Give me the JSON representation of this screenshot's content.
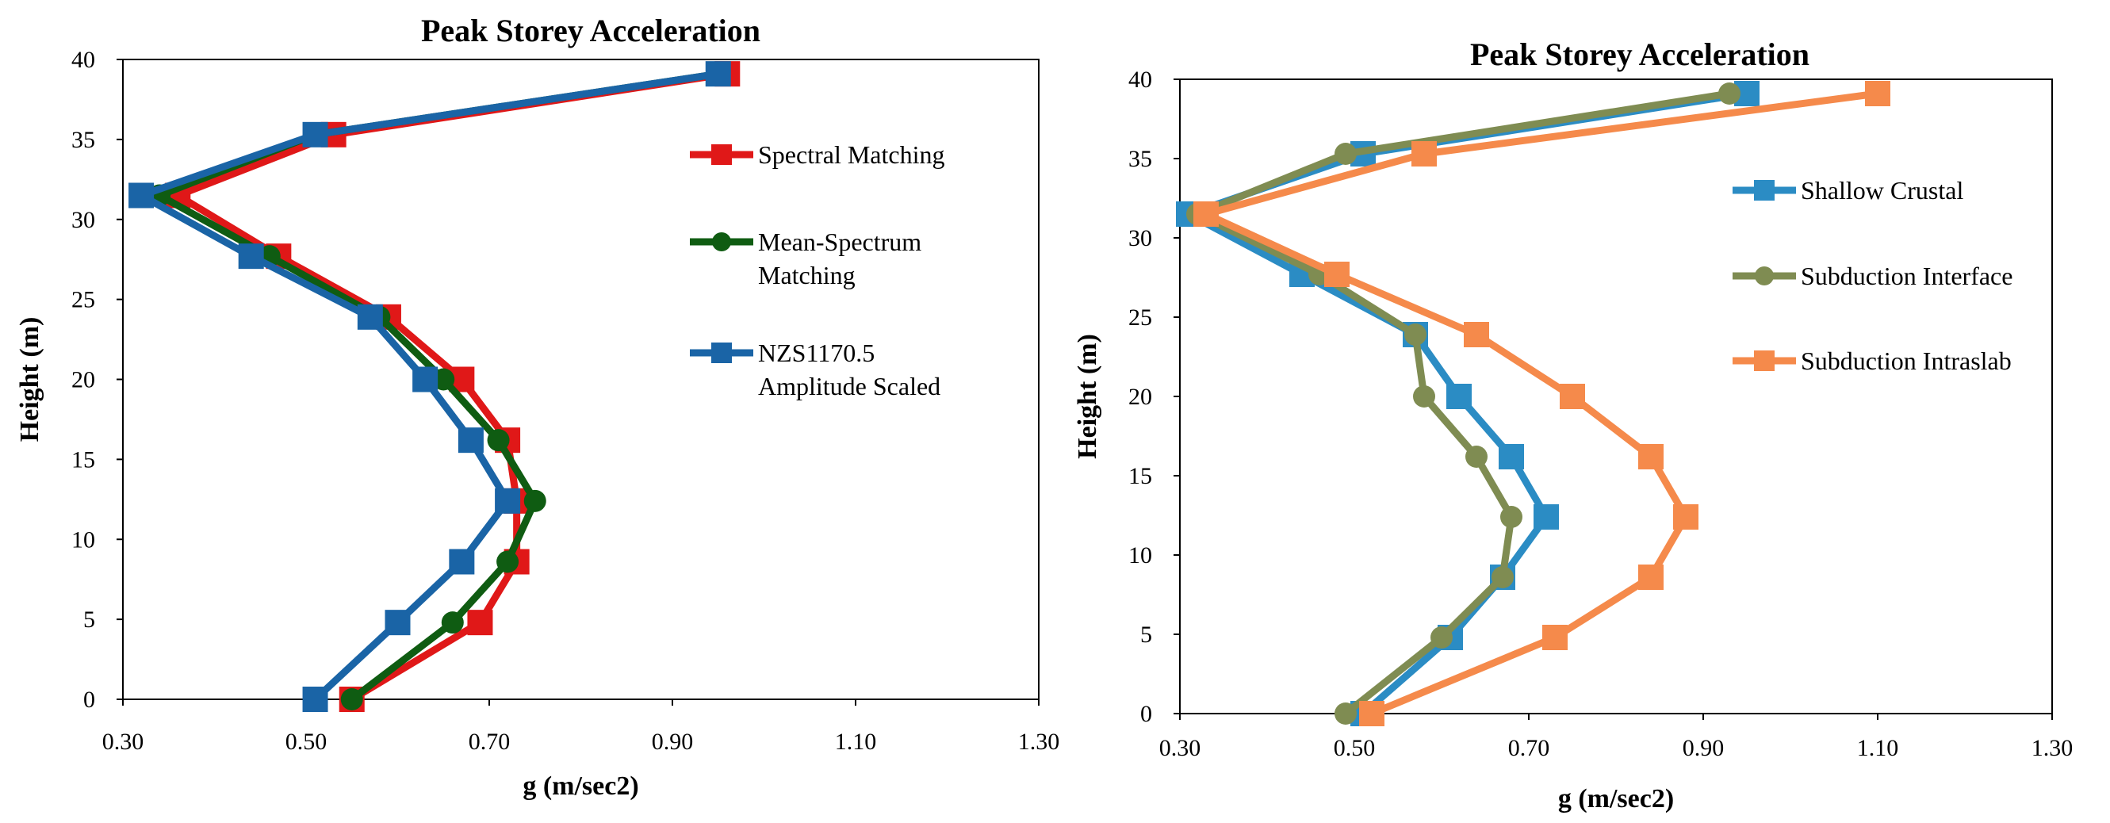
{
  "chart_data": [
    {
      "type": "line",
      "title": "Peak Storey Acceleration",
      "xlabel": "g (m/sec2)",
      "ylabel": "Height (m)",
      "xlim": [
        0.3,
        1.3
      ],
      "ylim": [
        0,
        40
      ],
      "xticks": [
        "0.30",
        "0.50",
        "0.70",
        "0.90",
        "1.10",
        "1.30"
      ],
      "yticks": [
        "0",
        "5",
        "10",
        "15",
        "20",
        "25",
        "30",
        "35",
        "40"
      ],
      "legend_position": "right",
      "heights": [
        0,
        4.8,
        8.6,
        12.4,
        16.2,
        20.0,
        23.9,
        27.7,
        31.5,
        35.3,
        39.1
      ],
      "series": [
        {
          "name": "Spectral Matching",
          "color": "#e01818",
          "marker": "square",
          "values": [
            0.55,
            0.69,
            0.73,
            0.73,
            0.72,
            0.67,
            0.59,
            0.47,
            0.36,
            0.53,
            0.96
          ]
        },
        {
          "name": "Mean-Spectrum Matching",
          "legend_lines": [
            "Mean-Spectrum",
            "Matching"
          ],
          "color": "#0f5c12",
          "marker": "circle",
          "values": [
            0.55,
            0.66,
            0.72,
            0.75,
            0.71,
            0.65,
            0.58,
            0.46,
            0.34,
            0.51,
            0.95
          ]
        },
        {
          "name": "NZS1170.5 Amplitude Scaled",
          "legend_lines": [
            "NZS1170.5",
            "Amplitude Scaled"
          ],
          "color": "#1a64a6",
          "marker": "square",
          "values": [
            0.51,
            0.6,
            0.67,
            0.72,
            0.68,
            0.63,
            0.57,
            0.44,
            0.32,
            0.51,
            0.95
          ]
        }
      ]
    },
    {
      "type": "line",
      "title": "Peak Storey Acceleration",
      "xlabel": "g (m/sec2)",
      "ylabel": "Height (m)",
      "xlim": [
        0.3,
        1.3
      ],
      "ylim": [
        0,
        40
      ],
      "xticks": [
        "0.30",
        "0.50",
        "0.70",
        "0.90",
        "1.10",
        "1.30"
      ],
      "yticks": [
        "0",
        "5",
        "10",
        "15",
        "20",
        "25",
        "30",
        "35",
        "40"
      ],
      "legend_position": "right",
      "heights": [
        0,
        4.8,
        8.6,
        12.4,
        16.2,
        20.0,
        23.9,
        27.7,
        31.5,
        35.3,
        39.1
      ],
      "series": [
        {
          "name": "Shallow Crustal",
          "color": "#2b8cc4",
          "marker": "square",
          "values": [
            0.51,
            0.61,
            0.67,
            0.72,
            0.68,
            0.62,
            0.57,
            0.44,
            0.31,
            0.51,
            0.95
          ]
        },
        {
          "name": "Subduction Interface",
          "color": "#7f8c52",
          "marker": "circle",
          "values": [
            0.49,
            0.6,
            0.67,
            0.68,
            0.64,
            0.58,
            0.57,
            0.46,
            0.32,
            0.49,
            0.93
          ]
        },
        {
          "name": "Subduction Intraslab",
          "color": "#f58a4b",
          "marker": "square",
          "values": [
            0.52,
            0.73,
            0.84,
            0.88,
            0.84,
            0.75,
            0.64,
            0.48,
            0.33,
            0.58,
            1.1
          ]
        }
      ]
    }
  ]
}
